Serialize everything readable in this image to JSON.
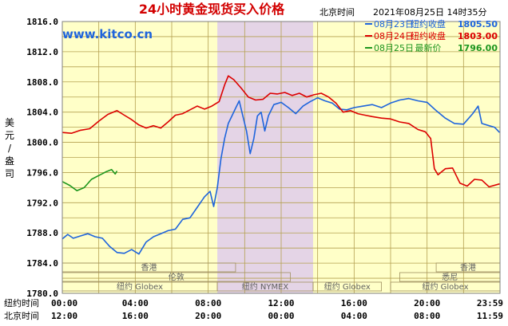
{
  "chart_data": {
    "type": "line",
    "title": "24小时黄金现货买入价格",
    "timezone_label": "北京时间",
    "timestamp": "2021年08月25日 14时35分",
    "watermark": "www.kitco.cn",
    "ylabel": "美元/盎司",
    "ylim": [
      1780,
      1816
    ],
    "yticks": [
      "1816.0",
      "1812.0",
      "1808.0",
      "1804.0",
      "1800.0",
      "1796.0",
      "1792.0",
      "1788.0",
      "1784.0",
      "1780.0"
    ],
    "x_row_labels": [
      "纽约时间",
      "北京时间"
    ],
    "x_ticks_ny": [
      "00:00",
      "04:00",
      "08:00",
      "12:00",
      "16:00",
      "20:00",
      "23:59"
    ],
    "x_ticks_bj": [
      "12:00",
      "16:00",
      "20:00",
      "00:00",
      "04:00",
      "08:00",
      "11:59"
    ],
    "nymex_shade": [
      8.5,
      13.75
    ],
    "sessions": [
      {
        "label": "香港",
        "row": 0,
        "start": 0,
        "end": 9.5
      },
      {
        "label": "香港",
        "row": 0,
        "start": 20.5,
        "end": 24
      },
      {
        "label": "伦敦",
        "row": 1,
        "start": 0,
        "end": 12.5
      },
      {
        "label": "悉尼",
        "row": 1,
        "start": 18.5,
        "end": 24
      },
      {
        "label": "纽约 Globex",
        "row": 2,
        "start": 0,
        "end": 8.5
      },
      {
        "label": "纽约 NYMEX",
        "row": 2,
        "start": 8.5,
        "end": 13.75
      },
      {
        "label": "纽约 Globex",
        "row": 2,
        "start": 13.75,
        "end": 17.5
      },
      {
        "label": "纽约 Globex",
        "row": 2,
        "start": 18.0,
        "end": 24
      }
    ],
    "series": [
      {
        "name": "08月23日",
        "legend_label": "纽约收盘",
        "legend_value": "1805.50",
        "color": "#1e64dc",
        "points": [
          [
            0,
            1787.2
          ],
          [
            0.3,
            1787.8
          ],
          [
            0.6,
            1787.3
          ],
          [
            1,
            1787.6
          ],
          [
            1.4,
            1787.9
          ],
          [
            1.8,
            1787.5
          ],
          [
            2.2,
            1787.3
          ],
          [
            2.6,
            1786.2
          ],
          [
            3.0,
            1785.4
          ],
          [
            3.4,
            1785.3
          ],
          [
            3.8,
            1785.8
          ],
          [
            4.2,
            1785.2
          ],
          [
            4.6,
            1786.8
          ],
          [
            5.0,
            1787.5
          ],
          [
            5.4,
            1787.9
          ],
          [
            5.8,
            1788.3
          ],
          [
            6.2,
            1788.5
          ],
          [
            6.6,
            1789.8
          ],
          [
            7.0,
            1790.0
          ],
          [
            7.4,
            1791.4
          ],
          [
            7.8,
            1792.8
          ],
          [
            8.1,
            1793.5
          ],
          [
            8.3,
            1791.5
          ],
          [
            8.5,
            1794.0
          ],
          [
            8.7,
            1797.8
          ],
          [
            8.9,
            1800.5
          ],
          [
            9.1,
            1802.5
          ],
          [
            9.3,
            1803.5
          ],
          [
            9.5,
            1804.5
          ],
          [
            9.7,
            1805.5
          ],
          [
            9.9,
            1803.5
          ],
          [
            10.1,
            1801.5
          ],
          [
            10.3,
            1798.5
          ],
          [
            10.5,
            1800.5
          ],
          [
            10.7,
            1803.5
          ],
          [
            10.9,
            1804.0
          ],
          [
            11.1,
            1801.5
          ],
          [
            11.3,
            1803.5
          ],
          [
            11.6,
            1805.0
          ],
          [
            12.0,
            1805.3
          ],
          [
            12.4,
            1804.6
          ],
          [
            12.8,
            1803.8
          ],
          [
            13.2,
            1804.8
          ],
          [
            13.6,
            1805.4
          ],
          [
            14.0,
            1805.9
          ],
          [
            14.4,
            1805.5
          ],
          [
            14.8,
            1805.2
          ],
          [
            15.2,
            1804.4
          ],
          [
            15.6,
            1804.3
          ],
          [
            16.0,
            1804.6
          ],
          [
            16.5,
            1804.8
          ],
          [
            17.0,
            1805.0
          ],
          [
            17.5,
            1804.6
          ],
          [
            18.0,
            1805.2
          ],
          [
            18.5,
            1805.6
          ],
          [
            19.0,
            1805.8
          ],
          [
            19.5,
            1805.5
          ],
          [
            20.0,
            1805.3
          ],
          [
            20.5,
            1804.2
          ],
          [
            21.0,
            1803.2
          ],
          [
            21.5,
            1802.5
          ],
          [
            22.0,
            1802.4
          ],
          [
            22.5,
            1803.8
          ],
          [
            22.8,
            1804.8
          ],
          [
            23.0,
            1802.5
          ],
          [
            23.4,
            1802.2
          ],
          [
            23.7,
            1802.0
          ],
          [
            23.98,
            1801.3
          ]
        ]
      },
      {
        "name": "08月24日",
        "legend_label": "纽约收盘",
        "legend_value": "1803.00",
        "color": "#dc0000",
        "points": [
          [
            0,
            1801.3
          ],
          [
            0.5,
            1801.2
          ],
          [
            1,
            1801.6
          ],
          [
            1.5,
            1801.8
          ],
          [
            2,
            1802.8
          ],
          [
            2.5,
            1803.7
          ],
          [
            3,
            1804.2
          ],
          [
            3.4,
            1803.6
          ],
          [
            3.8,
            1803.0
          ],
          [
            4.2,
            1802.3
          ],
          [
            4.6,
            1801.9
          ],
          [
            5.0,
            1802.2
          ],
          [
            5.4,
            1801.9
          ],
          [
            5.8,
            1802.7
          ],
          [
            6.2,
            1803.6
          ],
          [
            6.6,
            1803.8
          ],
          [
            7.0,
            1804.3
          ],
          [
            7.4,
            1804.8
          ],
          [
            7.8,
            1804.4
          ],
          [
            8.2,
            1804.8
          ],
          [
            8.6,
            1805.4
          ],
          [
            8.9,
            1807.6
          ],
          [
            9.1,
            1808.8
          ],
          [
            9.4,
            1808.3
          ],
          [
            9.8,
            1807.2
          ],
          [
            10.2,
            1806.0
          ],
          [
            10.6,
            1805.6
          ],
          [
            11.0,
            1805.7
          ],
          [
            11.4,
            1806.5
          ],
          [
            11.8,
            1806.4
          ],
          [
            12.2,
            1806.6
          ],
          [
            12.6,
            1806.2
          ],
          [
            13.0,
            1806.5
          ],
          [
            13.4,
            1806.0
          ],
          [
            13.8,
            1806.3
          ],
          [
            14.2,
            1806.5
          ],
          [
            14.6,
            1806.0
          ],
          [
            15.0,
            1805.2
          ],
          [
            15.4,
            1804.0
          ],
          [
            15.8,
            1804.2
          ],
          [
            16.2,
            1803.8
          ],
          [
            16.6,
            1803.6
          ],
          [
            17.0,
            1803.4
          ],
          [
            17.5,
            1803.2
          ],
          [
            18.0,
            1803.1
          ],
          [
            18.5,
            1802.7
          ],
          [
            19.0,
            1802.5
          ],
          [
            19.5,
            1801.7
          ],
          [
            19.9,
            1801.4
          ],
          [
            20.2,
            1800.5
          ],
          [
            20.4,
            1796.5
          ],
          [
            20.6,
            1795.7
          ],
          [
            21.0,
            1796.5
          ],
          [
            21.4,
            1796.6
          ],
          [
            21.8,
            1794.6
          ],
          [
            22.2,
            1794.2
          ],
          [
            22.6,
            1795.1
          ],
          [
            23.0,
            1795.0
          ],
          [
            23.4,
            1794.1
          ],
          [
            23.98,
            1794.5
          ]
        ]
      },
      {
        "name": "08月25日",
        "legend_label": "最新价",
        "legend_value": "1796.00",
        "color": "#1e961e",
        "points": [
          [
            0,
            1794.8
          ],
          [
            0.4,
            1794.3
          ],
          [
            0.8,
            1793.6
          ],
          [
            1.2,
            1794.0
          ],
          [
            1.6,
            1795.1
          ],
          [
            2.0,
            1795.6
          ],
          [
            2.4,
            1796.1
          ],
          [
            2.7,
            1796.4
          ],
          [
            2.9,
            1795.8
          ],
          [
            3.0,
            1796.2
          ]
        ]
      }
    ]
  }
}
